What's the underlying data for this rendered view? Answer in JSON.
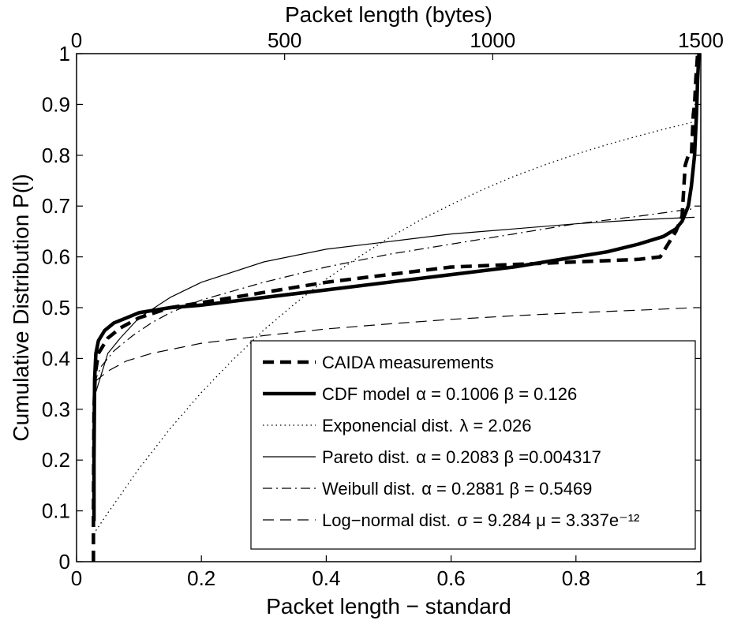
{
  "chart_data": {
    "type": "line",
    "xlabel": "Packet length − standard",
    "x2label": "Packet length (bytes)",
    "ylabel": "Cumulative Distribution P(l)",
    "xlim": [
      0,
      1
    ],
    "ylim": [
      0,
      1
    ],
    "x2lim": [
      0,
      1500
    ],
    "grid": false,
    "legend_position": "bottom-right",
    "x_ticks": [
      "0",
      "0.2",
      "0.4",
      "0.6",
      "0.8",
      "1"
    ],
    "x_tick_values": [
      0,
      0.2,
      0.4,
      0.6,
      0.8,
      1
    ],
    "x2_ticks": [
      "0",
      "500",
      "1000",
      "1500"
    ],
    "x2_tick_values": [
      0,
      500,
      1000,
      1500
    ],
    "y_ticks": [
      "0",
      "0.1",
      "0.2",
      "0.3",
      "0.4",
      "0.5",
      "0.6",
      "0.7",
      "0.8",
      "0.9",
      "1"
    ],
    "y_tick_values": [
      0,
      0.1,
      0.2,
      0.3,
      0.4,
      0.5,
      0.6,
      0.7,
      0.8,
      0.9,
      1
    ],
    "series": [
      {
        "name": "CAIDA measurements",
        "style": "dashed-bold",
        "x": [
          0.027,
          0.027,
          0.028,
          0.03,
          0.035,
          0.05,
          0.07,
          0.1,
          0.15,
          0.2,
          0.3,
          0.4,
          0.5,
          0.6,
          0.7,
          0.8,
          0.9,
          0.935,
          0.95,
          0.96,
          0.97,
          0.975,
          0.98,
          0.985,
          0.988,
          0.99,
          0.992,
          0.995
        ],
        "y": [
          0.0,
          0.1,
          0.3,
          0.37,
          0.41,
          0.44,
          0.46,
          0.48,
          0.5,
          0.51,
          0.53,
          0.55,
          0.565,
          0.58,
          0.585,
          0.59,
          0.595,
          0.6,
          0.63,
          0.65,
          0.68,
          0.78,
          0.8,
          0.8,
          0.88,
          0.9,
          0.95,
          1.0
        ]
      },
      {
        "name": "CDF model",
        "params": "α = 0.1006   β = 0.126",
        "style": "solid-bold",
        "x": [
          0.028,
          0.028,
          0.029,
          0.031,
          0.035,
          0.045,
          0.06,
          0.08,
          0.1,
          0.15,
          0.2,
          0.3,
          0.4,
          0.5,
          0.6,
          0.7,
          0.8,
          0.85,
          0.9,
          0.94,
          0.96,
          0.97,
          0.98,
          0.985,
          0.99,
          0.993,
          0.995,
          0.997
        ],
        "y": [
          0.08,
          0.2,
          0.36,
          0.41,
          0.435,
          0.455,
          0.47,
          0.48,
          0.49,
          0.5,
          0.505,
          0.52,
          0.535,
          0.55,
          0.565,
          0.58,
          0.6,
          0.61,
          0.625,
          0.64,
          0.655,
          0.67,
          0.7,
          0.74,
          0.8,
          0.88,
          0.95,
          1.0
        ]
      },
      {
        "name": "Exponencial dist.",
        "params": "λ = 2.026",
        "style": "dotted",
        "x": [
          0.027,
          0.05,
          0.1,
          0.15,
          0.2,
          0.25,
          0.3,
          0.35,
          0.4,
          0.45,
          0.5,
          0.55,
          0.6,
          0.65,
          0.7,
          0.75,
          0.8,
          0.85,
          0.9,
          0.95,
          0.99
        ],
        "y": [
          0.054,
          0.096,
          0.183,
          0.262,
          0.333,
          0.397,
          0.456,
          0.508,
          0.556,
          0.598,
          0.637,
          0.672,
          0.703,
          0.732,
          0.758,
          0.781,
          0.802,
          0.821,
          0.838,
          0.854,
          0.866
        ]
      },
      {
        "name": "Pareto dist.",
        "params": "α = 0.2083     β =0.004317",
        "style": "solid-thin",
        "x": [
          0.03,
          0.05,
          0.07,
          0.1,
          0.15,
          0.2,
          0.3,
          0.4,
          0.5,
          0.6,
          0.7,
          0.8,
          0.9,
          0.99
        ],
        "y": [
          0.33,
          0.41,
          0.44,
          0.48,
          0.52,
          0.55,
          0.59,
          0.615,
          0.63,
          0.645,
          0.655,
          0.665,
          0.673,
          0.678
        ]
      },
      {
        "name": "Weibull dist.",
        "params": "α = 0.2881   β = 0.5469",
        "style": "dashdot",
        "x": [
          0.027,
          0.04,
          0.06,
          0.09,
          0.12,
          0.15,
          0.2,
          0.3,
          0.4,
          0.5,
          0.6,
          0.7,
          0.8,
          0.9,
          0.99
        ],
        "y": [
          0.35,
          0.385,
          0.415,
          0.445,
          0.47,
          0.49,
          0.515,
          0.55,
          0.58,
          0.605,
          0.625,
          0.645,
          0.665,
          0.68,
          0.695
        ]
      },
      {
        "name": "Log−normal dist.",
        "params": "σ = 9.284   μ = 3.337e⁻¹²",
        "style": "dashed-thin",
        "x": [
          0.03,
          0.05,
          0.08,
          0.12,
          0.2,
          0.3,
          0.4,
          0.5,
          0.6,
          0.7,
          0.8,
          0.9,
          0.99
        ],
        "y": [
          0.355,
          0.375,
          0.395,
          0.41,
          0.43,
          0.445,
          0.458,
          0.468,
          0.477,
          0.484,
          0.49,
          0.495,
          0.5
        ]
      }
    ]
  }
}
